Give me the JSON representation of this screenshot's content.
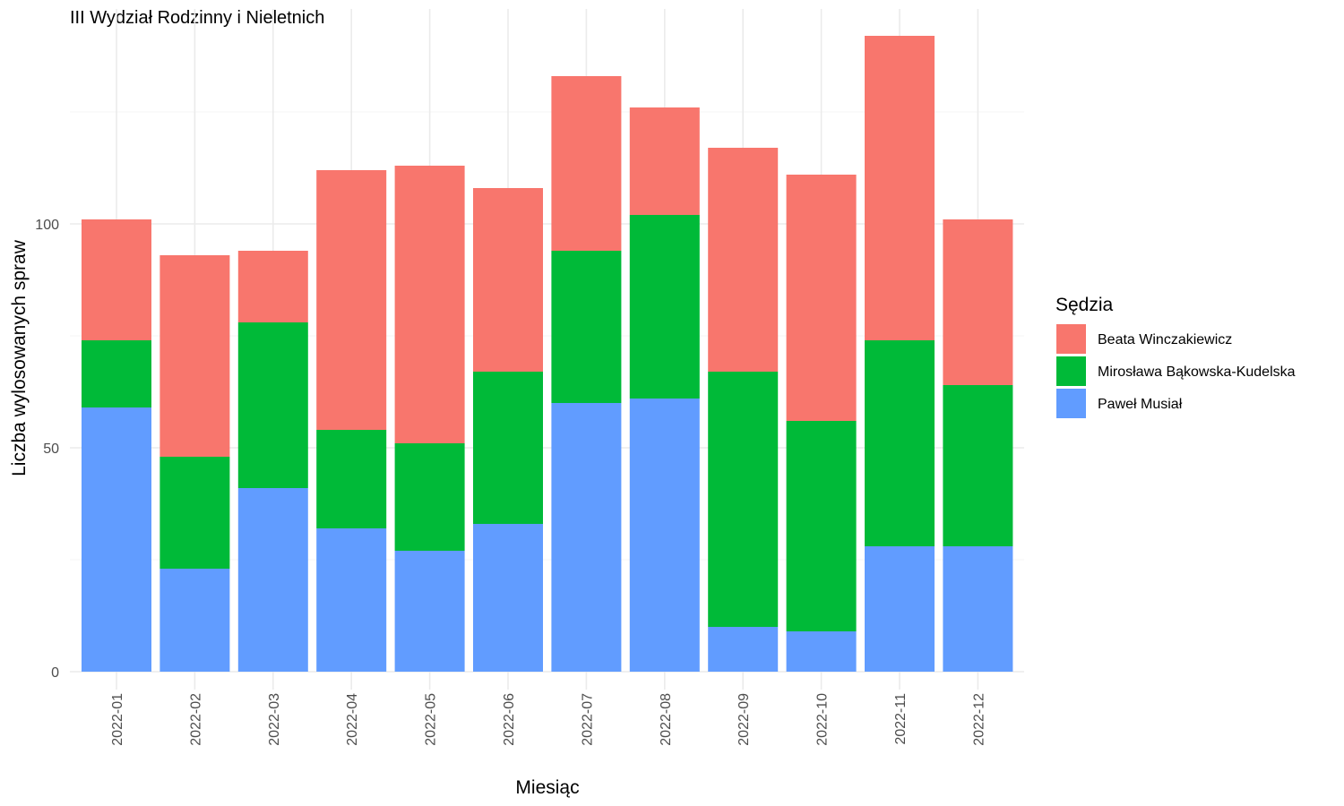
{
  "chart_data": {
    "type": "bar",
    "stacked": true,
    "title": "III Wydział Rodzinny i Nieletnich",
    "xlabel": "Miesiąc",
    "ylabel": "Liczba wylosowanych spraw",
    "ylim": [
      0,
      140
    ],
    "y_ticks": [
      0,
      50,
      100
    ],
    "grid": true,
    "categories": [
      "2022-01",
      "2022-02",
      "2022-03",
      "2022-04",
      "2022-05",
      "2022-06",
      "2022-07",
      "2022-08",
      "2022-09",
      "2022-10",
      "2022-11",
      "2022-12"
    ],
    "series": [
      {
        "name": "Paweł Musiał",
        "color": "#619CFF",
        "values": [
          59,
          23,
          41,
          32,
          27,
          33,
          60,
          61,
          10,
          9,
          28,
          28
        ]
      },
      {
        "name": "Mirosława Bąkowska-Kudelska",
        "color": "#00BA38",
        "values": [
          15,
          25,
          37,
          22,
          24,
          34,
          34,
          41,
          57,
          47,
          46,
          36
        ]
      },
      {
        "name": "Beata Winczakiewicz",
        "color": "#F8766D",
        "values": [
          27,
          45,
          16,
          58,
          62,
          41,
          39,
          24,
          50,
          55,
          68,
          37
        ]
      }
    ],
    "legend": {
      "title": "Sędzia",
      "position": "right",
      "order": [
        "Beata Winczakiewicz",
        "Mirosława Bąkowska-Kudelska",
        "Paweł Musiał"
      ]
    }
  }
}
